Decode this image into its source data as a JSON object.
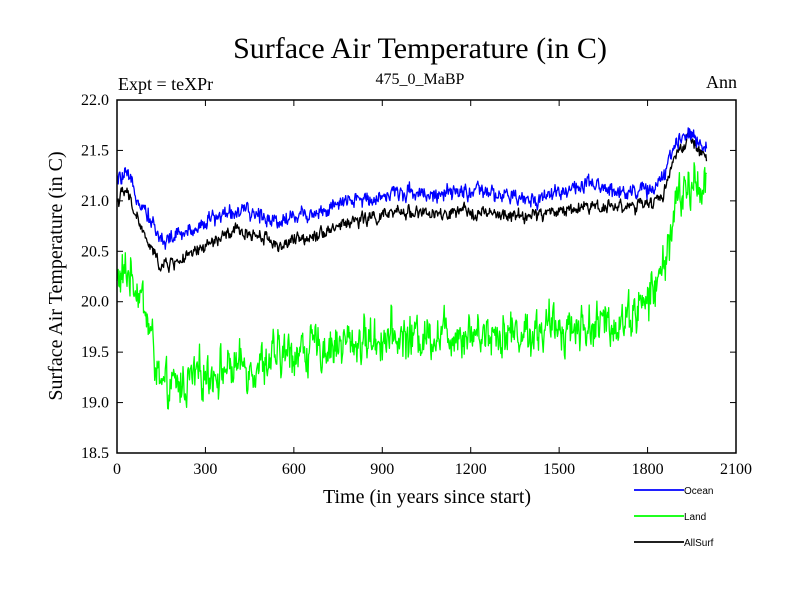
{
  "chart_data": {
    "type": "line",
    "title": "Surface Air Temperature (in C)",
    "subtitle": "475_0_MaBP",
    "left_label": "Expt = teXPr",
    "right_label": "Ann",
    "xlabel": "Time (in years since start)",
    "ylabel": "Surface Air Temperature (in C)",
    "xlim": [
      0,
      2100
    ],
    "ylim": [
      18.5,
      22.0
    ],
    "xticks": [
      0,
      300,
      600,
      900,
      1200,
      1500,
      1800,
      2100
    ],
    "yticks": [
      18.5,
      19.0,
      19.5,
      20.0,
      20.5,
      21.0,
      21.5,
      22.0
    ],
    "xtick_labels": [
      "0",
      "300",
      "600",
      "900",
      "1200",
      "1500",
      "1800",
      "2100"
    ],
    "ytick_labels": [
      "18.5",
      "19.0",
      "19.5",
      "20.0",
      "20.5",
      "21.0",
      "21.5",
      "22.0"
    ],
    "grid": false,
    "legend_position": "bottom-right",
    "x_end": 2000,
    "series": [
      {
        "name": "Ocean",
        "color": "#0000ff",
        "x": [
          0,
          30,
          60,
          100,
          150,
          200,
          250,
          300,
          400,
          500,
          550,
          600,
          700,
          800,
          900,
          1000,
          1100,
          1200,
          1300,
          1400,
          1500,
          1600,
          1700,
          1800,
          1850,
          1900,
          1950,
          2000
        ],
        "y": [
          21.2,
          21.25,
          21.1,
          20.9,
          20.6,
          20.65,
          20.7,
          20.8,
          20.9,
          20.85,
          20.8,
          20.85,
          20.9,
          21.0,
          21.05,
          21.1,
          21.05,
          21.1,
          21.05,
          21.0,
          21.1,
          21.15,
          21.1,
          21.1,
          21.2,
          21.6,
          21.7,
          21.5
        ],
        "noise": 0.12
      },
      {
        "name": "Land",
        "color": "#00ff00",
        "x": [
          0,
          40,
          80,
          120,
          150,
          200,
          300,
          400,
          500,
          600,
          700,
          800,
          900,
          1000,
          1100,
          1200,
          1300,
          1400,
          1500,
          1600,
          1700,
          1800,
          1850,
          1900,
          1950,
          2000
        ],
        "y": [
          20.2,
          20.3,
          20.1,
          19.6,
          19.1,
          19.15,
          19.3,
          19.35,
          19.4,
          19.5,
          19.55,
          19.6,
          19.65,
          19.65,
          19.7,
          19.7,
          19.7,
          19.7,
          19.75,
          19.75,
          19.8,
          20.0,
          20.3,
          21.0,
          21.15,
          21.2
        ],
        "noise": 0.33
      },
      {
        "name": "AllSurf",
        "color": "#000000",
        "x": [
          0,
          30,
          60,
          100,
          150,
          200,
          250,
          300,
          400,
          500,
          550,
          600,
          700,
          800,
          900,
          1000,
          1100,
          1200,
          1300,
          1400,
          1500,
          1600,
          1700,
          1800,
          1850,
          1900,
          1950,
          2000
        ],
        "y": [
          21.0,
          21.1,
          20.9,
          20.6,
          20.35,
          20.4,
          20.45,
          20.55,
          20.7,
          20.65,
          20.55,
          20.6,
          20.7,
          20.8,
          20.85,
          20.9,
          20.85,
          20.9,
          20.85,
          20.85,
          20.9,
          20.95,
          20.95,
          20.95,
          21.05,
          21.5,
          21.6,
          21.4
        ],
        "noise": 0.1
      }
    ]
  }
}
